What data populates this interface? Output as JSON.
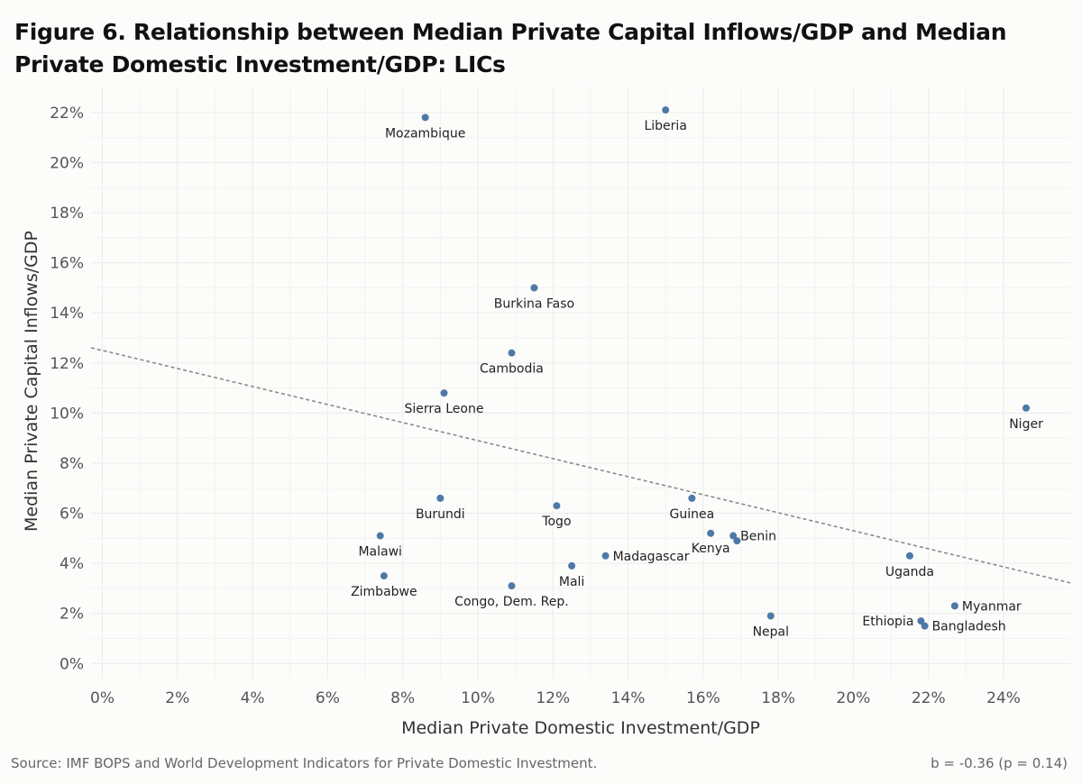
{
  "title": "Figure 6. Relationship between Median Private Capital Inflows/GDP and Median Private Domestic Investment/GDP: LICs",
  "source": "Source: IMF BOPS and World Development Indicators for Private Domestic Investment.",
  "stat": "b = -0.36 (p = 0.14)",
  "colors": {
    "point": "#4e79a7",
    "trend": "#8a8a8a",
    "grid": "#ebebeb",
    "axis_text": "#555555"
  },
  "chart_data": {
    "type": "scatter",
    "xlabel": "Median Private Domestic Investment/GDP",
    "ylabel": "Median Private Capital Inflows/GDP",
    "xlim": [
      -0.3,
      25.8
    ],
    "ylim": [
      -0.6,
      23.0
    ],
    "x_ticks": [
      0,
      2,
      4,
      6,
      8,
      10,
      12,
      14,
      16,
      18,
      20,
      22,
      24
    ],
    "x_tick_labels": [
      "0%",
      "2%",
      "4%",
      "6%",
      "8%",
      "10%",
      "12%",
      "14%",
      "16%",
      "18%",
      "20%",
      "22%",
      "24%"
    ],
    "y_ticks": [
      0,
      2,
      4,
      6,
      8,
      10,
      12,
      14,
      16,
      18,
      20,
      22
    ],
    "y_tick_labels": [
      "0%",
      "2%",
      "4%",
      "6%",
      "8%",
      "10%",
      "12%",
      "14%",
      "16%",
      "18%",
      "20%",
      "22%"
    ],
    "grid": true,
    "trendline": {
      "style": "dashed",
      "slope": -0.36,
      "intercept": 12.5
    },
    "points": [
      {
        "label": "Mozambique",
        "x": 8.6,
        "y": 21.8,
        "pos": "below"
      },
      {
        "label": "Liberia",
        "x": 15.0,
        "y": 22.1,
        "pos": "below"
      },
      {
        "label": "Burkina Faso",
        "x": 11.5,
        "y": 15.0,
        "pos": "below"
      },
      {
        "label": "Cambodia",
        "x": 10.9,
        "y": 12.4,
        "pos": "below"
      },
      {
        "label": "Sierra Leone",
        "x": 9.1,
        "y": 10.8,
        "pos": "below"
      },
      {
        "label": "Niger",
        "x": 24.6,
        "y": 10.2,
        "pos": "below"
      },
      {
        "label": "Burundi",
        "x": 9.0,
        "y": 6.6,
        "pos": "below"
      },
      {
        "label": "Togo",
        "x": 12.1,
        "y": 6.3,
        "pos": "below"
      },
      {
        "label": "Guinea",
        "x": 15.7,
        "y": 6.6,
        "pos": "below"
      },
      {
        "label": "Malawi",
        "x": 7.4,
        "y": 5.1,
        "pos": "below"
      },
      {
        "label": "Kenya",
        "x": 16.2,
        "y": 5.2,
        "pos": "below-left"
      },
      {
        "label": "Benin",
        "x": 16.8,
        "y": 5.1,
        "pos": "right"
      },
      {
        "label": "",
        "x": 16.9,
        "y": 4.9,
        "pos": "none"
      },
      {
        "label": "Madagascar",
        "x": 13.4,
        "y": 4.3,
        "pos": "right"
      },
      {
        "label": "Mali",
        "x": 12.5,
        "y": 3.9,
        "pos": "below"
      },
      {
        "label": "Uganda",
        "x": 21.5,
        "y": 4.3,
        "pos": "below"
      },
      {
        "label": "Zimbabwe",
        "x": 7.5,
        "y": 3.5,
        "pos": "below"
      },
      {
        "label": "Congo, Dem. Rep.",
        "x": 10.9,
        "y": 3.1,
        "pos": "below"
      },
      {
        "label": "Nepal",
        "x": 17.8,
        "y": 1.9,
        "pos": "below"
      },
      {
        "label": "Myanmar",
        "x": 22.7,
        "y": 2.3,
        "pos": "right"
      },
      {
        "label": "Ethiopia",
        "x": 21.8,
        "y": 1.7,
        "pos": "left"
      },
      {
        "label": "Bangladesh",
        "x": 21.9,
        "y": 1.5,
        "pos": "right"
      }
    ]
  }
}
